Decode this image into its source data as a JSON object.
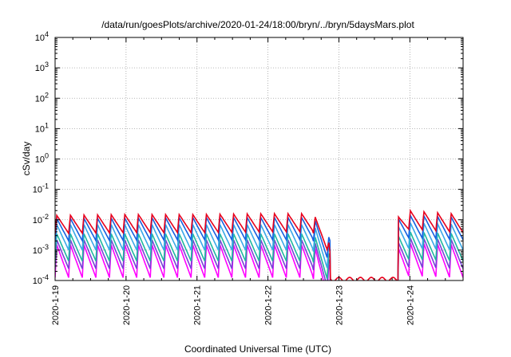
{
  "chart_data": {
    "type": "line",
    "title": "/data/run/goesPlots/archive/2020-01-24/18:00/bryn/../bryn/5daysMars.plot",
    "xlabel": "Coordinated Universal Time (UTC)",
    "ylabel": "cSv/day",
    "yscale": "log",
    "ylim": [
      0.0001,
      10000
    ],
    "xlim": [
      "2020-01-19T00:00",
      "2020-01-24T18:00"
    ],
    "grid": true,
    "legend": "none",
    "x_ticks": [
      "2020-1-19",
      "2020-1-20",
      "2020-1-21",
      "2020-1-22",
      "2020-1-23",
      "2020-1-24"
    ],
    "y_ticks": [
      {
        "base": "10",
        "exp": "-4",
        "value": 0.0001
      },
      {
        "base": "10",
        "exp": "-3",
        "value": 0.001
      },
      {
        "base": "10",
        "exp": "-2",
        "value": 0.01
      },
      {
        "base": "10",
        "exp": "-1",
        "value": 0.1
      },
      {
        "base": "10",
        "exp": "0",
        "value": 1
      },
      {
        "base": "10",
        "exp": "1",
        "value": 10
      },
      {
        "base": "10",
        "exp": "2",
        "value": 100
      },
      {
        "base": "10",
        "exp": "3",
        "value": 1000
      },
      {
        "base": "10",
        "exp": "4",
        "value": 10000
      }
    ],
    "series": [
      {
        "color": "#e8001c",
        "peak": 0.016,
        "ratio": 4.0,
        "x": [
          "2020-01-19T00:00",
          "2020-01-20T00:00",
          "2020-01-21T00:00",
          "2020-01-22T00:00",
          "2020-01-22T20:00",
          "2020-01-23T00:00",
          "2020-01-23T04:00",
          "2020-01-23T08:00",
          "2020-01-23T16:00",
          "2020-01-23T20:00",
          "2020-01-24T00:00",
          "2020-01-24T18:00"
        ],
        "y": [
          0.014,
          0.015,
          0.015,
          0.016,
          0.016,
          0.00012,
          0.00011,
          0.00012,
          0.00012,
          0.015,
          0.02,
          0.015
        ]
      },
      {
        "color": "#1560e0",
        "peak": 0.012,
        "ratio": 5.5,
        "x": [
          "2020-01-19T00:00",
          "2020-01-21T00:00",
          "2020-01-22T20:00",
          "2020-01-24T00:00",
          "2020-01-24T18:00"
        ],
        "y": [
          0.011,
          0.012,
          0.012,
          0.014,
          0.012
        ]
      },
      {
        "color": "#3aa8e8",
        "peak": 0.007,
        "ratio": 7.0,
        "x": [
          "2020-01-19T00:00",
          "2020-01-21T00:00",
          "2020-01-22T20:00",
          "2020-01-24T00:00",
          "2020-01-24T18:00"
        ],
        "y": [
          0.007,
          0.007,
          0.007,
          0.008,
          0.007
        ]
      },
      {
        "color": "#20b8a0",
        "peak": 0.0035,
        "ratio": 8.0,
        "x": [
          "2020-01-19T00:00",
          "2020-01-21T00:00",
          "2020-01-22T20:00",
          "2020-01-24T00:00",
          "2020-01-24T18:00"
        ],
        "y": [
          0.0035,
          0.0035,
          0.0035,
          0.004,
          0.0035
        ]
      },
      {
        "color": "#7a40d8",
        "peak": 0.0022,
        "ratio": 9.0,
        "x": [
          "2020-01-19T00:00",
          "2020-01-21T00:00",
          "2020-01-22T20:00",
          "2020-01-24T00:00",
          "2020-01-24T18:00"
        ],
        "y": [
          0.0022,
          0.0022,
          0.0022,
          0.0025,
          0.0022
        ]
      },
      {
        "color": "#ff00ff",
        "peak": 0.0015,
        "ratio": 12.0,
        "x": [
          "2020-01-19T00:00",
          "2020-01-21T00:00",
          "2020-01-22T20:00",
          "2020-01-24T00:00",
          "2020-01-24T18:00"
        ],
        "y": [
          0.0015,
          0.0015,
          0.0015,
          0.0017,
          0.0015
        ]
      }
    ],
    "pattern": {
      "period_hours": 4.6,
      "gap_start": "2020-01-22T21:00",
      "gap_end": "2020-01-23T20:00"
    }
  }
}
